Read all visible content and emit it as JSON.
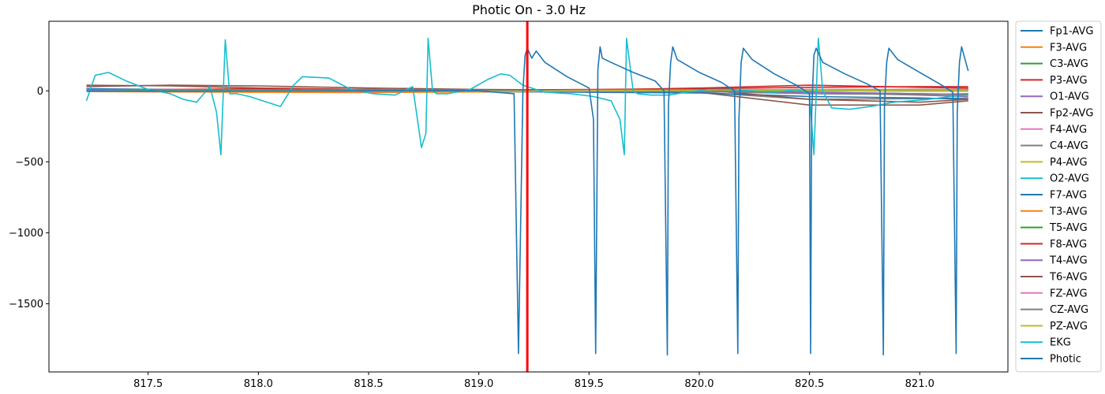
{
  "chart_data": {
    "type": "line",
    "title": "Photic On - 3.0 Hz",
    "xlabel": "",
    "ylabel": "",
    "xlim": [
      817.05,
      821.4
    ],
    "ylim": [
      -1980,
      490
    ],
    "xticks": [
      817.5,
      818.0,
      818.5,
      819.0,
      819.5,
      820.0,
      820.5,
      821.0
    ],
    "xtick_labels": [
      "817.5",
      "818.0",
      "818.5",
      "819.0",
      "819.5",
      "820.0",
      "820.5",
      "821.0"
    ],
    "yticks": [
      0,
      -500,
      -1000,
      -1500
    ],
    "ytick_labels": [
      "0",
      "−500",
      "−1000",
      "−1500"
    ],
    "grid": false,
    "legend_position": "outside-right",
    "event_marker": {
      "x": 819.22,
      "color": "#ff0000"
    },
    "series": [
      {
        "name": "Fp1-AVG",
        "color": "#1f77b4",
        "x": [
          817.22,
          817.6,
          818.0,
          818.5,
          819.0,
          819.5,
          820.0,
          820.5,
          821.0,
          821.22
        ],
        "y": [
          8,
          5,
          3,
          2,
          0,
          -3,
          -5,
          -10,
          -20,
          -25
        ]
      },
      {
        "name": "F3-AVG",
        "color": "#ff7f0e",
        "x": [
          817.22,
          817.6,
          818.0,
          818.5,
          819.0,
          819.5,
          820.0,
          820.5,
          821.0,
          821.22
        ],
        "y": [
          -5,
          -8,
          -10,
          -12,
          -8,
          -5,
          -3,
          0,
          5,
          5
        ]
      },
      {
        "name": "C3-AVG",
        "color": "#2ca02c",
        "x": [
          817.22,
          817.6,
          818.0,
          818.5,
          819.0,
          819.5,
          820.0,
          820.5,
          821.0,
          821.22
        ],
        "y": [
          5,
          3,
          0,
          2,
          5,
          3,
          0,
          5,
          10,
          10
        ]
      },
      {
        "name": "P3-AVG",
        "color": "#d62728",
        "x": [
          817.22,
          817.6,
          818.0,
          818.5,
          819.0,
          819.5,
          820.0,
          820.5,
          821.0,
          821.22
        ],
        "y": [
          10,
          5,
          5,
          0,
          0,
          5,
          20,
          40,
          25,
          20
        ]
      },
      {
        "name": "O1-AVG",
        "color": "#9467bd",
        "x": [
          817.22,
          817.6,
          818.0,
          818.5,
          819.0,
          819.5,
          820.0,
          820.5,
          821.0,
          821.22
        ],
        "y": [
          0,
          -5,
          -5,
          0,
          5,
          5,
          0,
          -10,
          -30,
          -40
        ]
      },
      {
        "name": "Fp2-AVG",
        "color": "#8c564b",
        "x": [
          817.22,
          817.6,
          818.0,
          818.5,
          819.0,
          819.5,
          820.0,
          820.5,
          821.0,
          821.22
        ],
        "y": [
          40,
          35,
          20,
          10,
          5,
          0,
          -10,
          -100,
          -100,
          -70
        ]
      },
      {
        "name": "F4-AVG",
        "color": "#e377c2",
        "x": [
          817.22,
          817.6,
          818.0,
          818.5,
          819.0,
          819.5,
          820.0,
          820.5,
          821.0,
          821.22
        ],
        "y": [
          0,
          5,
          5,
          0,
          -5,
          0,
          5,
          5,
          0,
          0
        ]
      },
      {
        "name": "C4-AVG",
        "color": "#7f7f7f",
        "x": [
          817.22,
          817.6,
          818.0,
          818.5,
          819.0,
          819.5,
          820.0,
          820.5,
          821.0,
          821.22
        ],
        "y": [
          0,
          5,
          10,
          5,
          0,
          -5,
          -10,
          -60,
          -55,
          -50
        ]
      },
      {
        "name": "P4-AVG",
        "color": "#bcbd22",
        "x": [
          817.22,
          817.6,
          818.0,
          818.5,
          819.0,
          819.5,
          820.0,
          820.5,
          821.0,
          821.22
        ],
        "y": [
          -3,
          -2,
          0,
          3,
          5,
          3,
          0,
          0,
          -3,
          -3
        ]
      },
      {
        "name": "O2-AVG",
        "color": "#17becf",
        "x": [
          817.22,
          817.6,
          818.0,
          818.5,
          819.0,
          819.5,
          820.0,
          820.5,
          821.0,
          821.22
        ],
        "y": [
          -5,
          0,
          5,
          5,
          0,
          -5,
          -5,
          0,
          5,
          5
        ]
      },
      {
        "name": "F7-AVG",
        "color": "#1f77b4",
        "x": [
          817.22,
          817.6,
          818.0,
          818.5,
          819.0,
          819.5,
          820.0,
          820.5,
          821.0,
          821.22
        ],
        "y": [
          15,
          10,
          5,
          0,
          -5,
          -10,
          -15,
          -40,
          -50,
          -60
        ]
      },
      {
        "name": "T3-AVG",
        "color": "#ff7f0e",
        "x": [
          817.22,
          817.6,
          818.0,
          818.5,
          819.0,
          819.5,
          820.0,
          820.5,
          821.0,
          821.22
        ],
        "y": [
          5,
          0,
          -5,
          -10,
          -5,
          0,
          5,
          10,
          10,
          10
        ]
      },
      {
        "name": "T5-AVG",
        "color": "#2ca02c",
        "x": [
          817.22,
          817.6,
          818.0,
          818.5,
          819.0,
          819.5,
          820.0,
          820.5,
          821.0,
          821.22
        ],
        "y": [
          0,
          0,
          0,
          5,
          5,
          5,
          0,
          5,
          10,
          10
        ]
      },
      {
        "name": "F8-AVG",
        "color": "#d62728",
        "x": [
          817.22,
          817.6,
          818.0,
          818.5,
          819.0,
          819.5,
          820.0,
          820.5,
          821.0,
          821.22
        ],
        "y": [
          5,
          10,
          15,
          10,
          5,
          10,
          15,
          25,
          30,
          30
        ]
      },
      {
        "name": "T4-AVG",
        "color": "#9467bd",
        "x": [
          817.22,
          817.6,
          818.0,
          818.5,
          819.0,
          819.5,
          820.0,
          820.5,
          821.0,
          821.22
        ],
        "y": [
          0,
          0,
          5,
          5,
          0,
          -5,
          -5,
          -10,
          -20,
          -30
        ]
      },
      {
        "name": "T6-AVG",
        "color": "#8c564b",
        "x": [
          817.22,
          817.6,
          818.0,
          818.5,
          819.0,
          819.5,
          820.0,
          820.5,
          821.0,
          821.22
        ],
        "y": [
          30,
          40,
          35,
          20,
          10,
          5,
          10,
          -60,
          -80,
          -60
        ]
      },
      {
        "name": "FZ-AVG",
        "color": "#e377c2",
        "x": [
          817.22,
          817.6,
          818.0,
          818.5,
          819.0,
          819.5,
          820.0,
          820.5,
          821.0,
          821.22
        ],
        "y": [
          5,
          5,
          0,
          -5,
          0,
          5,
          5,
          10,
          10,
          10
        ]
      },
      {
        "name": "CZ-AVG",
        "color": "#7f7f7f",
        "x": [
          817.22,
          817.6,
          818.0,
          818.5,
          819.0,
          819.5,
          820.0,
          820.5,
          821.0,
          821.22
        ],
        "y": [
          0,
          0,
          5,
          10,
          5,
          0,
          -5,
          -20,
          -25,
          -20
        ]
      },
      {
        "name": "PZ-AVG",
        "color": "#bcbd22",
        "x": [
          817.22,
          817.6,
          818.0,
          818.5,
          819.0,
          819.5,
          820.0,
          820.5,
          821.0,
          821.22
        ],
        "y": [
          0,
          5,
          5,
          0,
          -5,
          0,
          5,
          5,
          0,
          0
        ]
      },
      {
        "name": "EKG",
        "color": "#17becf",
        "x": [
          817.22,
          817.26,
          817.32,
          817.4,
          817.5,
          817.6,
          817.66,
          817.72,
          817.78,
          817.81,
          817.83,
          817.85,
          817.87,
          817.88,
          817.9,
          817.96,
          818.04,
          818.1,
          818.16,
          818.2,
          818.32,
          818.42,
          818.52,
          818.62,
          818.7,
          818.74,
          818.76,
          818.77,
          818.79,
          818.81,
          818.86,
          818.96,
          819.04,
          819.1,
          819.14,
          819.2,
          819.3,
          819.42,
          819.52,
          819.6,
          819.64,
          819.66,
          819.67,
          819.7,
          819.72,
          819.78,
          819.86,
          819.94,
          820.04,
          820.14,
          820.24,
          820.34,
          820.44,
          820.5,
          820.52,
          820.54,
          820.56,
          820.6,
          820.68,
          820.78,
          820.88,
          820.96,
          821.04,
          821.14,
          821.22
        ],
        "y": [
          -70,
          110,
          130,
          70,
          10,
          -20,
          -60,
          -80,
          30,
          -150,
          -450,
          360,
          -20,
          -20,
          -20,
          -40,
          -80,
          -110,
          40,
          100,
          90,
          10,
          -20,
          -30,
          30,
          -400,
          -300,
          370,
          0,
          -20,
          -20,
          10,
          80,
          120,
          110,
          40,
          -10,
          -20,
          -40,
          -70,
          -200,
          -450,
          370,
          0,
          -20,
          -30,
          -30,
          -10,
          10,
          10,
          0,
          -10,
          10,
          -20,
          -450,
          370,
          0,
          -120,
          -130,
          -110,
          -80,
          -70,
          -60,
          -40,
          -30
        ]
      },
      {
        "name": "Photic",
        "color": "#1f77b4",
        "x": [
          817.22,
          817.6,
          818.0,
          818.5,
          819.0,
          819.16,
          819.18,
          819.2,
          819.21,
          819.22,
          819.24,
          819.26,
          819.3,
          819.4,
          819.5,
          819.52,
          819.53,
          819.54,
          819.55,
          819.56,
          819.6,
          819.7,
          819.8,
          819.84,
          819.855,
          819.86,
          819.87,
          819.88,
          819.9,
          820.0,
          820.1,
          820.16,
          820.175,
          820.18,
          820.19,
          820.2,
          820.24,
          820.34,
          820.44,
          820.5,
          820.505,
          820.51,
          820.52,
          820.53,
          820.56,
          820.66,
          820.76,
          820.82,
          820.835,
          820.84,
          820.85,
          820.86,
          820.9,
          821.0,
          821.1,
          821.15,
          821.165,
          821.17,
          821.18,
          821.19,
          821.22
        ],
        "y": [
          0,
          0,
          0,
          0,
          0,
          -20,
          -1850,
          0,
          250,
          300,
          230,
          280,
          200,
          100,
          20,
          -200,
          -1850,
          150,
          310,
          230,
          200,
          130,
          70,
          0,
          -1860,
          -100,
          200,
          310,
          220,
          130,
          60,
          0,
          -1850,
          -200,
          200,
          300,
          220,
          120,
          40,
          -20,
          -1850,
          -150,
          250,
          300,
          200,
          120,
          50,
          0,
          -1860,
          -100,
          200,
          300,
          220,
          130,
          40,
          -10,
          -1850,
          -150,
          200,
          310,
          140
        ]
      }
    ]
  }
}
